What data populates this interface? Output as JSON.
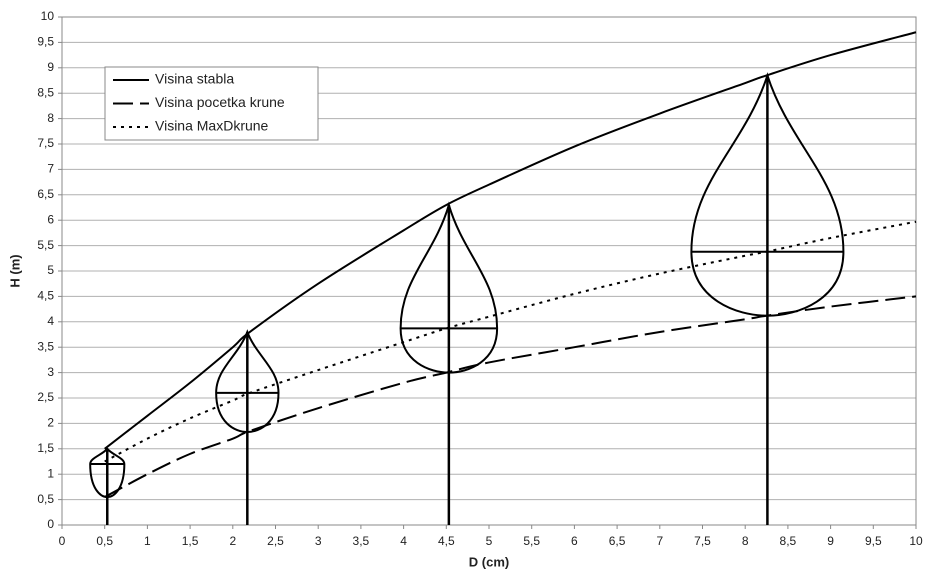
{
  "chart_data": {
    "type": "line",
    "xlabel": "D (cm)",
    "ylabel": "H (m)",
    "x": [
      0.5,
      1,
      1.5,
      2,
      2.2,
      3,
      4,
      4.5,
      5,
      6,
      7,
      8,
      8.25,
      9,
      10
    ],
    "series": [
      {
        "name": "Visina stabla",
        "color": "#000000",
        "style": "solid",
        "values": [
          1.5,
          2.15,
          2.8,
          3.5,
          3.8,
          4.75,
          5.8,
          6.3,
          6.7,
          7.45,
          8.1,
          8.7,
          8.85,
          9.25,
          9.7
        ]
      },
      {
        "name": "Visina pocetka krune",
        "color": "#000000",
        "style": "dashed",
        "values": [
          0.55,
          1.0,
          1.4,
          1.7,
          1.85,
          2.3,
          2.8,
          3.0,
          3.2,
          3.5,
          3.8,
          4.05,
          4.12,
          4.3,
          4.5
        ]
      },
      {
        "name": "Visina MaxDkrune",
        "color": "#000000",
        "style": "dotted",
        "values": [
          1.25,
          1.7,
          2.1,
          2.45,
          2.6,
          3.05,
          3.6,
          3.87,
          4.1,
          4.55,
          4.95,
          5.3,
          5.38,
          5.65,
          5.97
        ]
      }
    ],
    "trees": [
      {
        "x": 0.53,
        "top": 1.5,
        "crown_max": 1.2,
        "crown_base": 0.55,
        "crown_width": 0.4
      },
      {
        "x": 2.17,
        "top": 3.8,
        "crown_max": 2.6,
        "crown_base": 1.83,
        "crown_width": 0.73
      },
      {
        "x": 4.53,
        "top": 6.3,
        "crown_max": 3.87,
        "crown_base": 3.0,
        "crown_width": 1.13
      },
      {
        "x": 8.26,
        "top": 8.85,
        "crown_max": 5.38,
        "crown_base": 4.12,
        "crown_width": 1.78
      }
    ],
    "xlim": [
      0,
      10
    ],
    "ylim": [
      0,
      10
    ],
    "xticks": [
      0,
      {
        "value": 0.5,
        "label": "0,5"
      },
      1,
      {
        "value": 1.5,
        "label": "1,5"
      },
      2,
      {
        "value": 2.5,
        "label": "2,5"
      },
      3,
      {
        "value": 3.5,
        "label": "3,5"
      },
      4,
      {
        "value": 4.5,
        "label": "4,5"
      },
      5,
      {
        "value": 5.5,
        "label": "5,5"
      },
      6,
      {
        "value": 6.5,
        "label": "6,5"
      },
      7,
      {
        "value": 7.5,
        "label": "7,5"
      },
      8,
      {
        "value": 8.5,
        "label": "8,5"
      },
      9,
      {
        "value": 9.5,
        "label": "9,5"
      },
      10
    ],
    "yticks": [
      0,
      {
        "value": 0.5,
        "label": "0,5"
      },
      1,
      {
        "value": 1.5,
        "label": "1,5"
      },
      2,
      {
        "value": 2.5,
        "label": "2,5"
      },
      3,
      {
        "value": 3.5,
        "label": "3,5"
      },
      4,
      {
        "value": 4.5,
        "label": "4,5"
      },
      5,
      {
        "value": 5.5,
        "label": "5,5"
      },
      6,
      {
        "value": 6.5,
        "label": "6,5"
      },
      7,
      {
        "value": 7.5,
        "label": "7,5"
      },
      8,
      {
        "value": 8.5,
        "label": "8,5"
      },
      9,
      {
        "value": 9.5,
        "label": "9,5"
      },
      10
    ],
    "grid": true,
    "legend": "upper left"
  }
}
